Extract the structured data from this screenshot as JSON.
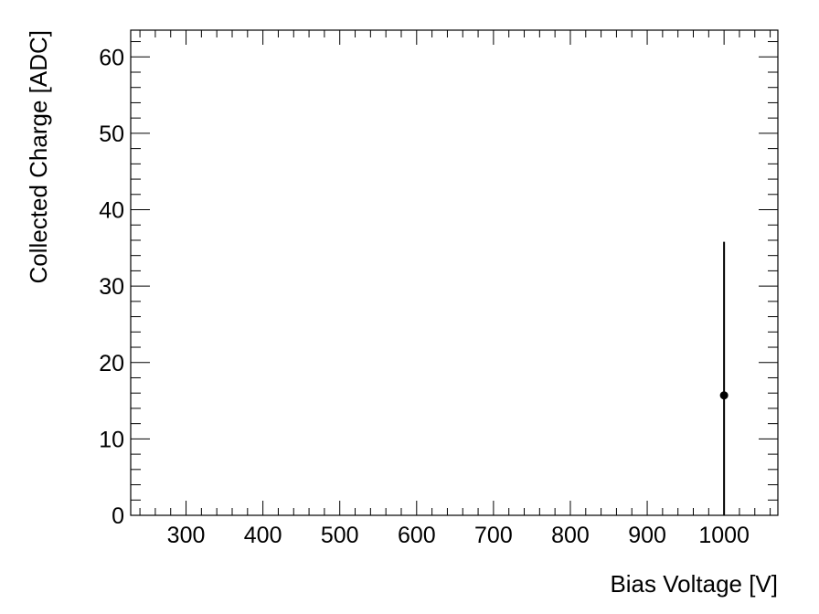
{
  "chart_data": {
    "type": "scatter",
    "title": "",
    "xlabel": "Bias Voltage [V]",
    "ylabel": "Collected Charge [ADC]",
    "xlim": [
      228,
      1070
    ],
    "ylim": [
      0,
      63.5
    ],
    "x_major_ticks": [
      300,
      400,
      500,
      600,
      700,
      800,
      900,
      1000
    ],
    "x_tick_labels": [
      "300",
      "400",
      "500",
      "600",
      "700",
      "800",
      "900",
      "1000"
    ],
    "y_major_ticks": [
      0,
      10,
      20,
      30,
      40,
      50,
      60
    ],
    "y_tick_labels": [
      "0",
      "10",
      "20",
      "30",
      "40",
      "50",
      "60"
    ],
    "grid": false,
    "series": [
      {
        "color": "#000000",
        "points": [
          {
            "x": 1000,
            "y": 15.7,
            "yerr_low": 15.7,
            "yerr_high": 20.1
          }
        ]
      }
    ]
  }
}
